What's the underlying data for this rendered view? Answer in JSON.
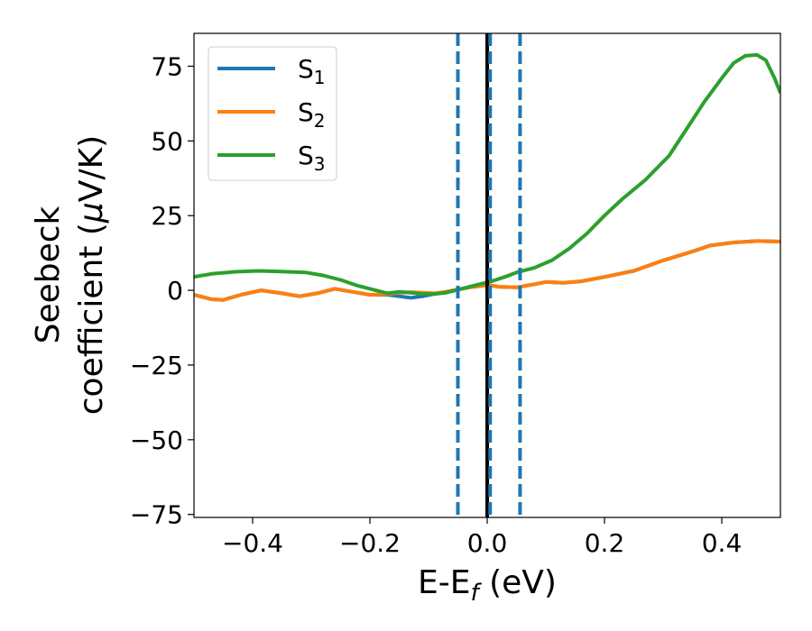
{
  "chart_data": {
    "type": "line",
    "xlabel": {
      "main": "E-E",
      "sub": "f",
      "tail": " (eV)"
    },
    "ylabel": {
      "line1": "Seebeck",
      "line2_pre": "coefficient  (",
      "mu": "μ",
      "line2_post": "V/K)"
    },
    "xlim": [
      -0.5,
      0.5
    ],
    "ylim": [
      -76,
      86
    ],
    "xticks": [
      -0.4,
      -0.2,
      0.0,
      0.2,
      0.4
    ],
    "xtick_labels": [
      "−0.4",
      "−0.2",
      "0.0",
      "0.2",
      "0.4"
    ],
    "yticks": [
      -75,
      -50,
      -25,
      0,
      25,
      50,
      75
    ],
    "ytick_labels": [
      "−75",
      "−50",
      "−25",
      "0",
      "25",
      "50",
      "75"
    ],
    "grid": false,
    "legend_position": "top-left",
    "series": [
      {
        "name_main": "S",
        "name_sub": "1",
        "color": "#1f77b4",
        "x": [
          -0.5,
          -0.47,
          -0.45,
          -0.42,
          -0.385,
          -0.35,
          -0.32,
          -0.29,
          -0.26,
          -0.23,
          -0.2,
          -0.17,
          -0.15,
          -0.13,
          -0.11,
          -0.09,
          -0.07,
          -0.05,
          -0.03,
          -0.01,
          0.0,
          0.02,
          0.05,
          0.08,
          0.1,
          0.13,
          0.16,
          0.2,
          0.25,
          0.3,
          0.35,
          0.38,
          0.42,
          0.46,
          0.5
        ],
        "y": [
          -1.5,
          -3.0,
          -3.2,
          -1.5,
          0.0,
          -1.0,
          -2.0,
          -1.0,
          0.5,
          -0.5,
          -1.5,
          -1.5,
          -2.0,
          -2.5,
          -2.0,
          -1.2,
          -0.5,
          0.3,
          1.0,
          1.5,
          1.8,
          1.2,
          1.0,
          2.0,
          2.8,
          2.5,
          3.0,
          4.5,
          6.5,
          10.0,
          13.0,
          15.0,
          16.0,
          16.5,
          16.3
        ]
      },
      {
        "name_main": "S",
        "name_sub": "2",
        "color": "#ff7f0e",
        "x": [
          -0.5,
          -0.47,
          -0.45,
          -0.42,
          -0.385,
          -0.35,
          -0.32,
          -0.29,
          -0.26,
          -0.23,
          -0.2,
          -0.17,
          -0.15,
          -0.13,
          -0.11,
          -0.09,
          -0.07,
          -0.05,
          -0.03,
          -0.01,
          0.0,
          0.02,
          0.05,
          0.08,
          0.1,
          0.13,
          0.16,
          0.2,
          0.25,
          0.3,
          0.35,
          0.38,
          0.42,
          0.46,
          0.5
        ],
        "y": [
          -1.5,
          -3.0,
          -3.2,
          -1.5,
          0.0,
          -1.0,
          -2.0,
          -1.0,
          0.5,
          -0.5,
          -1.5,
          -1.3,
          -0.8,
          -0.6,
          -0.8,
          -1.0,
          -0.5,
          0.3,
          1.0,
          1.5,
          1.8,
          1.2,
          1.0,
          2.0,
          2.8,
          2.5,
          3.0,
          4.5,
          6.5,
          10.0,
          13.0,
          15.0,
          16.0,
          16.5,
          16.3
        ]
      },
      {
        "name_main": "S",
        "name_sub": "3",
        "color": "#2ca02c",
        "x": [
          -0.5,
          -0.47,
          -0.43,
          -0.39,
          -0.35,
          -0.31,
          -0.28,
          -0.25,
          -0.22,
          -0.19,
          -0.17,
          -0.15,
          -0.13,
          -0.11,
          -0.09,
          -0.07,
          -0.05,
          -0.03,
          -0.01,
          0.01,
          0.03,
          0.05,
          0.08,
          0.11,
          0.14,
          0.17,
          0.2,
          0.23,
          0.27,
          0.31,
          0.34,
          0.37,
          0.4,
          0.42,
          0.44,
          0.46,
          0.475,
          0.49,
          0.5
        ],
        "y": [
          4.5,
          5.5,
          6.2,
          6.5,
          6.3,
          6.0,
          5.0,
          3.5,
          1.5,
          0.0,
          -1.0,
          -0.5,
          -0.8,
          -1.2,
          -1.2,
          -0.8,
          0.2,
          1.2,
          2.2,
          3.2,
          4.5,
          6.0,
          7.5,
          10.0,
          14.0,
          19.0,
          25.0,
          30.5,
          37.0,
          45.0,
          54.0,
          63.0,
          71.0,
          76.0,
          78.5,
          78.8,
          77.0,
          71.0,
          66.0
        ]
      }
    ],
    "vlines": [
      {
        "x": -0.05,
        "style": "dashed",
        "color": "#1f77b4"
      },
      {
        "x": 0.0,
        "style": "solid",
        "color": "#000000"
      },
      {
        "x": 0.005,
        "style": "dashed",
        "color": "#1f77b4"
      },
      {
        "x": 0.056,
        "style": "dashed",
        "color": "#1f77b4"
      }
    ]
  }
}
